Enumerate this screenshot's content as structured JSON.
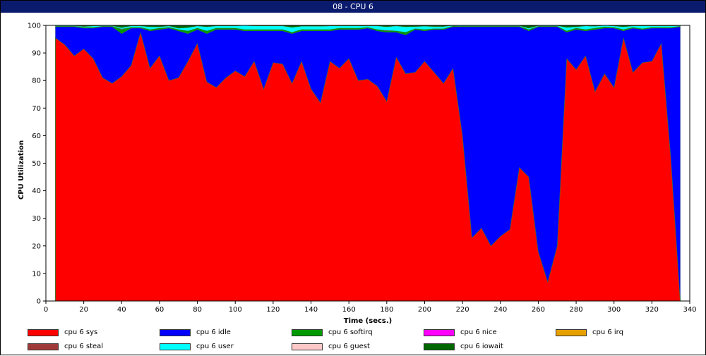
{
  "window": {
    "title": "08 - CPU 6"
  },
  "chart_data": {
    "type": "area",
    "stacked": true,
    "title": "08 - CPU 6",
    "xlabel": "Time (secs.)",
    "ylabel": "CPU Utilization",
    "xlim": [
      0,
      340
    ],
    "ylim": [
      0,
      100
    ],
    "xticks": [
      0,
      20,
      40,
      60,
      80,
      100,
      120,
      140,
      160,
      180,
      200,
      220,
      240,
      260,
      280,
      300,
      320,
      340
    ],
    "yticks": [
      0,
      10,
      20,
      30,
      40,
      50,
      60,
      70,
      80,
      90,
      100
    ],
    "grid": false,
    "legend_position": "bottom",
    "x": [
      5,
      10,
      15,
      20,
      25,
      30,
      35,
      40,
      45,
      50,
      55,
      60,
      65,
      70,
      75,
      80,
      85,
      90,
      95,
      100,
      105,
      110,
      115,
      120,
      125,
      130,
      135,
      140,
      145,
      150,
      155,
      160,
      165,
      170,
      175,
      180,
      185,
      190,
      195,
      200,
      205,
      210,
      215,
      220,
      225,
      230,
      235,
      240,
      245,
      250,
      255,
      260,
      265,
      270,
      275,
      280,
      285,
      290,
      295,
      300,
      305,
      310,
      315,
      320,
      325,
      330,
      335
    ],
    "series": [
      {
        "name": "cpu 6 sys",
        "color": "#ff0000",
        "values": [
          95.5,
          93,
          89,
          91.5,
          88,
          81,
          79,
          81.5,
          85.5,
          97.5,
          84.5,
          89,
          80,
          81,
          87,
          93.5,
          79.5,
          77.5,
          81,
          83.5,
          81.5,
          87,
          77,
          86.5,
          86,
          79,
          87,
          77,
          72,
          87,
          84.5,
          88,
          80,
          80.5,
          78,
          72.5,
          88.5,
          82.5,
          83,
          87,
          83,
          79,
          84.5,
          60,
          23,
          26.5,
          20,
          23.5,
          26,
          48.5,
          45,
          18,
          7,
          20,
          88,
          84,
          89,
          76,
          82.5,
          77.5,
          95.5,
          83,
          86.5,
          87,
          93.5,
          52,
          0
        ]
      },
      {
        "name": "cpu 6 idle",
        "color": "#0000ff",
        "values": [
          4,
          6.5,
          10.5,
          7.5,
          11,
          18.5,
          20.5,
          15.5,
          13.5,
          1.5,
          13.5,
          9.5,
          19,
          17,
          10,
          5,
          17.5,
          21,
          17.5,
          15,
          16.5,
          11,
          21,
          11.5,
          12,
          18,
          11,
          21,
          26,
          11,
          14,
          10.5,
          18.5,
          18.5,
          20,
          25,
          9,
          14,
          15.5,
          11,
          15.5,
          19.5,
          15,
          39.5,
          76.5,
          73,
          79.5,
          76,
          73.5,
          51,
          53,
          81.5,
          92.5,
          79.5,
          9.5,
          14.5,
          9,
          22.5,
          16.5,
          21.5,
          2.5,
          16,
          12,
          12,
          5.5,
          47,
          99.5
        ]
      },
      {
        "name": "cpu 6 softirq",
        "color": "#009900",
        "values": [
          0.2,
          0.2,
          0.2,
          0.3,
          0.3,
          0.2,
          0.2,
          1.5,
          0.3,
          0.3,
          0.5,
          0.5,
          0.3,
          0.5,
          1,
          0.5,
          1,
          0.5,
          0.5,
          0.5,
          0.5,
          0.5,
          0.5,
          0.5,
          0.5,
          0.5,
          0.5,
          0.5,
          0.5,
          0.5,
          0.5,
          0.5,
          0.5,
          0.3,
          0.5,
          0.5,
          0.5,
          1,
          0.3,
          0.5,
          0.3,
          0.3,
          0.3,
          0.2,
          0.2,
          0.2,
          0.2,
          0.2,
          0.2,
          0.2,
          0.5,
          0.2,
          0.2,
          0.2,
          0.5,
          0.5,
          0.5,
          0.5,
          0.5,
          0.3,
          0.5,
          0.3,
          0.3,
          0.3,
          0.3,
          0.3,
          0.2
        ]
      },
      {
        "name": "cpu 6 nice",
        "color": "#ff00ff",
        "values": [
          0,
          0,
          0,
          0,
          0,
          0,
          0,
          0.2,
          0,
          0,
          0,
          0,
          0,
          0,
          0,
          0,
          0,
          0,
          0,
          0,
          0,
          0,
          0,
          0,
          0,
          0,
          0,
          0,
          0,
          0,
          0,
          0,
          0,
          0,
          0,
          0.2,
          0,
          0,
          0,
          0,
          0,
          0,
          0,
          0,
          0,
          0,
          0,
          0,
          0,
          0,
          0,
          0,
          0,
          0,
          0,
          0,
          0,
          0,
          0,
          0,
          0,
          0,
          0,
          0,
          0,
          0,
          0
        ]
      },
      {
        "name": "cpu 6 irq",
        "color": "#e6a000",
        "values": [
          0,
          0,
          0,
          0,
          0,
          0,
          0,
          0,
          0,
          0,
          0,
          0,
          0,
          0,
          0,
          0,
          0,
          0,
          0,
          0,
          0,
          0,
          0,
          0,
          0,
          0,
          0,
          0,
          0,
          0,
          0,
          0,
          0,
          0,
          0,
          0,
          0,
          0,
          0,
          0,
          0,
          0,
          0,
          0,
          0,
          0,
          0,
          0,
          0,
          0,
          0,
          0,
          0,
          0,
          0,
          0,
          0,
          0,
          0,
          0,
          0,
          0,
          0,
          0,
          0,
          0,
          0
        ]
      },
      {
        "name": "cpu 6 steal",
        "color": "#a03a3a",
        "values": [
          0,
          0,
          0,
          0,
          0,
          0,
          0,
          0,
          0,
          0,
          0,
          0,
          0,
          0,
          0,
          0,
          0,
          0,
          0,
          0,
          0,
          0,
          0,
          0,
          0,
          0,
          0,
          0,
          0,
          0,
          0,
          0,
          0,
          0,
          0,
          0,
          0,
          0,
          0,
          0,
          0,
          0,
          0,
          0,
          0,
          0,
          0,
          0,
          0,
          0,
          0,
          0,
          0,
          0,
          0,
          0,
          0,
          0,
          0,
          0,
          0,
          0,
          0,
          0,
          0,
          0,
          0
        ]
      },
      {
        "name": "cpu 6 user",
        "color": "#00ffff",
        "values": [
          0.2,
          0.2,
          0.2,
          0.3,
          0.5,
          0.2,
          0.2,
          0.5,
          0.5,
          0.5,
          1,
          0.5,
          0.5,
          0.5,
          1.2,
          0.8,
          1.5,
          0.8,
          0.8,
          0.8,
          1.5,
          1.3,
          1.3,
          1.3,
          1.3,
          1.8,
          1.2,
          1.2,
          1.2,
          1.3,
          0.8,
          0.8,
          0.8,
          0.5,
          1.3,
          1.3,
          1.8,
          2,
          0.8,
          1.2,
          0.8,
          0.8,
          0.2,
          0.2,
          0.2,
          0.2,
          0.2,
          0.2,
          0.2,
          0.2,
          0.5,
          0.2,
          0.2,
          0.2,
          1.3,
          0.5,
          1.3,
          0.7,
          0.5,
          0.5,
          1,
          0.5,
          1,
          0.5,
          0.5,
          0.5,
          0.2
        ]
      },
      {
        "name": "cpu 6 guest",
        "color": "#ffc8c8",
        "values": [
          0,
          0,
          0,
          0,
          0,
          0,
          0,
          0,
          0,
          0,
          0,
          0,
          0,
          0,
          0,
          0,
          0,
          0,
          0,
          0,
          0,
          0,
          0,
          0,
          0,
          0,
          0,
          0,
          0,
          0,
          0,
          0,
          0,
          0,
          0,
          0,
          0,
          0,
          0,
          0,
          0,
          0,
          0,
          0,
          0,
          0,
          0,
          0,
          0,
          0,
          0,
          0,
          0,
          0,
          0,
          0,
          0,
          0,
          0,
          0,
          0,
          0,
          0,
          0,
          0,
          0,
          0
        ]
      },
      {
        "name": "cpu 6 iowait",
        "color": "#006600",
        "values": [
          0.1,
          0.1,
          0.1,
          0.4,
          0.2,
          0.1,
          0.1,
          0.8,
          0.2,
          0.2,
          0.5,
          0.5,
          0.2,
          1,
          0.8,
          0.2,
          0.5,
          0.2,
          0.2,
          0.2,
          0,
          0.2,
          0.2,
          0.2,
          0.2,
          0.7,
          0.3,
          0.3,
          0.3,
          0.2,
          0.2,
          0.2,
          0.2,
          0.2,
          0.2,
          0.5,
          0.2,
          0.5,
          0.4,
          0.3,
          0.4,
          0.4,
          0,
          0.1,
          0.1,
          0.1,
          0.1,
          0.1,
          0.1,
          0.1,
          1,
          0.1,
          0.1,
          0.1,
          0.7,
          0.5,
          0.2,
          0.3,
          0,
          0.2,
          0.5,
          0.2,
          0.2,
          0.2,
          0.2,
          0.2,
          0.1
        ]
      }
    ]
  }
}
